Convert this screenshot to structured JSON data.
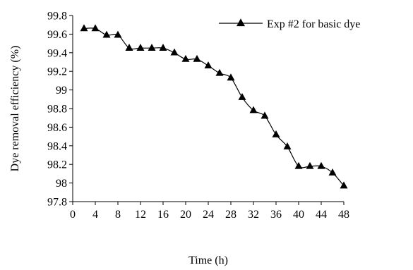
{
  "chart_data": {
    "type": "line",
    "title": "",
    "xlabel": "Time (h)",
    "ylabel": "Dye removal efficiency (%)",
    "xlim": [
      0,
      48
    ],
    "ylim": [
      97.8,
      99.8
    ],
    "x_ticks": [
      0,
      4,
      8,
      12,
      16,
      20,
      24,
      28,
      32,
      36,
      40,
      44,
      48
    ],
    "y_ticks": [
      97.8,
      98,
      98.2,
      98.4,
      98.6,
      98.8,
      99,
      99.2,
      99.4,
      99.6,
      99.8
    ],
    "y_tick_labels": [
      "97.8",
      "98",
      "98.2",
      "98.4",
      "98.6",
      "98.8",
      "99",
      "99.2",
      "99.4",
      "99.6",
      "99.8"
    ],
    "grid": false,
    "legend_position": "top-right",
    "series": [
      {
        "name": "Exp #2 for basic dye",
        "marker": "triangle",
        "color": "#000000",
        "x": [
          2,
          4,
          6,
          8,
          10,
          12,
          14,
          16,
          18,
          20,
          22,
          24,
          26,
          28,
          30,
          32,
          34,
          36,
          38,
          40,
          42,
          44,
          46,
          48
        ],
        "y": [
          99.66,
          99.66,
          99.59,
          99.59,
          99.45,
          99.45,
          99.45,
          99.45,
          99.4,
          99.33,
          99.33,
          99.26,
          99.18,
          99.13,
          98.92,
          98.78,
          98.72,
          98.52,
          98.39,
          98.18,
          98.18,
          98.18,
          98.11,
          97.97
        ]
      }
    ]
  }
}
